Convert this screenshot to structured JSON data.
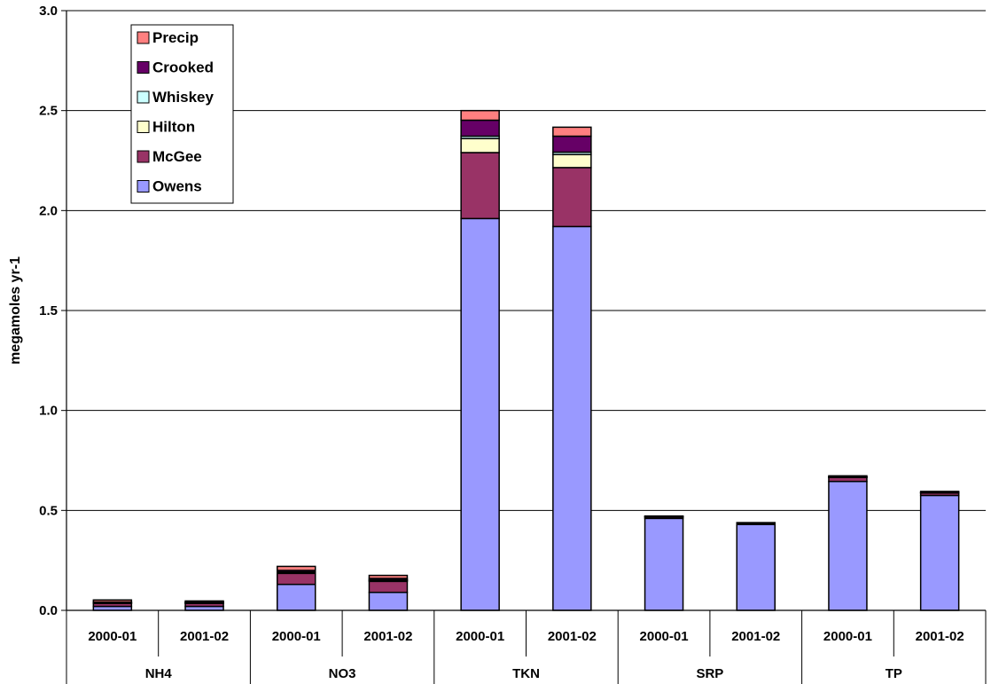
{
  "chart_data": {
    "type": "bar",
    "stacked": true,
    "ylabel": "megamoles yr-1",
    "ylim": [
      0,
      3.0
    ],
    "yticks": [
      "0.0",
      "0.5",
      "1.0",
      "1.5",
      "2.0",
      "2.5",
      "3.0"
    ],
    "grid": true,
    "legend_position": "top-left",
    "groups": [
      "NH4",
      "NO3",
      "TKN",
      "SRP",
      "TP"
    ],
    "categories": [
      "2000-01",
      "2001-02",
      "2000-01",
      "2001-02",
      "2000-01",
      "2001-02",
      "2000-01",
      "2001-02",
      "2000-01",
      "2001-02"
    ],
    "series": [
      {
        "name": "Owens",
        "color": "#9999ff",
        "values": [
          0.02,
          0.02,
          0.13,
          0.09,
          1.96,
          1.92,
          0.46,
          0.43,
          0.645,
          0.575
        ]
      },
      {
        "name": "McGee",
        "color": "#993366",
        "values": [
          0.015,
          0.015,
          0.055,
          0.055,
          0.33,
          0.295,
          0.008,
          0.005,
          0.02,
          0.012
        ]
      },
      {
        "name": "Hilton",
        "color": "#ffffcc",
        "values": [
          0.002,
          0.002,
          0.005,
          0.005,
          0.07,
          0.065,
          0.001,
          0.001,
          0.002,
          0.002
        ]
      },
      {
        "name": "Whiskey",
        "color": "#ccffff",
        "values": [
          0.001,
          0.001,
          0.002,
          0.002,
          0.012,
          0.012,
          0.001,
          0.001,
          0.001,
          0.001
        ]
      },
      {
        "name": "Crooked",
        "color": "#660066",
        "values": [
          0.004,
          0.003,
          0.008,
          0.008,
          0.08,
          0.08,
          0.002,
          0.002,
          0.005,
          0.005
        ]
      },
      {
        "name": "Precip",
        "color": "#ff8080",
        "values": [
          0.01,
          0.006,
          0.02,
          0.015,
          0.048,
          0.045,
          0.0,
          0.0,
          0.0,
          0.0
        ]
      }
    ]
  }
}
